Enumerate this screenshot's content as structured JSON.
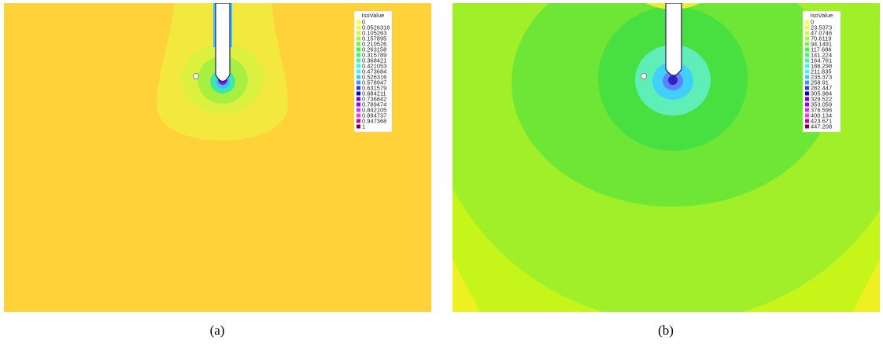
{
  "panels": [
    {
      "caption": "(a)",
      "legend": {
        "title": "IsoValue",
        "entries": [
          "0",
          "0.0526316",
          "0.105263",
          "0.157895",
          "0.210526",
          "0.263158",
          "0.315789",
          "0.368421",
          "0.421053",
          "0.473684",
          "0.526316",
          "0.578947",
          "0.631579",
          "0.684211",
          "0.736842",
          "0.789474",
          "0.842105",
          "0.894737",
          "0.947368",
          "1"
        ],
        "colors": [
          "#ffff33",
          "#e6ff33",
          "#ccff33",
          "#99ff33",
          "#66ff33",
          "#33ff33",
          "#33ff66",
          "#33ff99",
          "#33ffcc",
          "#33ffff",
          "#33ccff",
          "#3399ff",
          "#3333ff",
          "#0000cc",
          "#6600ff",
          "#9900ff",
          "#cc33ff",
          "#ff33ff",
          "#cc0099",
          "#800040"
        ]
      }
    },
    {
      "caption": "(b)",
      "legend": {
        "title": "IsoValue",
        "entries": [
          "0",
          "23.5373",
          "47.0746",
          "70.6119",
          "94.1491",
          "117.686",
          "141.224",
          "164.761",
          "188.298",
          "211.835",
          "235.373",
          "258.91",
          "282.447",
          "305.984",
          "329.522",
          "353.059",
          "376.596",
          "400.134",
          "423.671",
          "447.208"
        ],
        "colors": [
          "#ffff33",
          "#e6ff33",
          "#ccff33",
          "#99ff33",
          "#66ff33",
          "#33ff33",
          "#33ff66",
          "#33ff99",
          "#33ffcc",
          "#33ffff",
          "#33ccff",
          "#3399ff",
          "#3333ff",
          "#0000cc",
          "#6600ff",
          "#9900ff",
          "#cc33ff",
          "#ff33ff",
          "#cc0099",
          "#800040"
        ]
      }
    }
  ]
}
